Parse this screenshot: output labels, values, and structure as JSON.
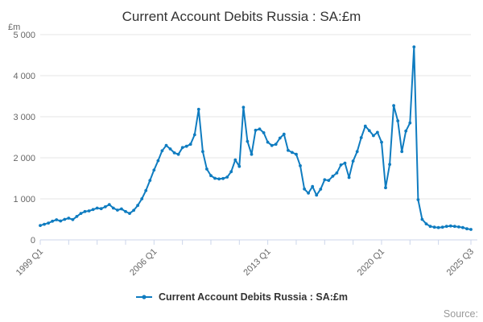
{
  "title": "Current Account Debits Russia : SA:£m",
  "y_axis": {
    "unit": "£m",
    "ticks": [
      {
        "value": 0,
        "label": "0"
      },
      {
        "value": 1000,
        "label": "1 000"
      },
      {
        "value": 2000,
        "label": "2 000"
      },
      {
        "value": 3000,
        "label": "3 000"
      },
      {
        "value": 4000,
        "label": "4 000"
      },
      {
        "value": 5000,
        "label": "5 000"
      }
    ]
  },
  "x_axis": {
    "tick_labels": [
      {
        "quarter_index": 0,
        "label": "1999 Q1"
      },
      {
        "quarter_index": 28,
        "label": "2006 Q1"
      },
      {
        "quarter_index": 56,
        "label": "2013 Q1"
      },
      {
        "quarter_index": 84,
        "label": "2020 Q1"
      },
      {
        "quarter_index": 106,
        "label": "2025 Q3"
      }
    ],
    "minor_tick_quarter_indices": [
      7,
      14,
      21,
      35,
      42,
      49,
      63,
      70,
      77,
      91,
      98
    ]
  },
  "legend": {
    "label": "Current Account Debits Russia : SA:£m"
  },
  "source_label": "Source:",
  "colors": {
    "line": "#0f7cc0",
    "grid": "#e6e6e6",
    "axis": "#ccd6eb",
    "tick_text": "#666666",
    "title_text": "#333333",
    "source_text": "#999999"
  },
  "chart_data": {
    "type": "line",
    "title": "Current Account Debits Russia : SA:£m",
    "series_name": "Current Account Debits Russia : SA:£m",
    "frequency": "quarterly",
    "x_start": "1999 Q1",
    "x_end": "2025 Q3",
    "ylabel": "£m",
    "ylim": [
      0,
      5000
    ],
    "grid": "horizontal-only",
    "legend_position": "bottom-center",
    "values": [
      350,
      380,
      410,
      455,
      490,
      460,
      500,
      530,
      495,
      570,
      645,
      690,
      705,
      740,
      775,
      760,
      805,
      860,
      775,
      725,
      755,
      690,
      645,
      720,
      840,
      1000,
      1200,
      1450,
      1700,
      1930,
      2170,
      2300,
      2215,
      2120,
      2085,
      2250,
      2280,
      2330,
      2560,
      3180,
      2150,
      1725,
      1565,
      1500,
      1485,
      1495,
      1530,
      1660,
      1950,
      1790,
      3230,
      2400,
      2085,
      2670,
      2700,
      2610,
      2380,
      2300,
      2330,
      2480,
      2575,
      2180,
      2130,
      2085,
      1805,
      1240,
      1140,
      1300,
      1090,
      1235,
      1465,
      1450,
      1550,
      1630,
      1825,
      1870,
      1520,
      1920,
      2150,
      2490,
      2770,
      2660,
      2540,
      2620,
      2380,
      1270,
      1840,
      3270,
      2900,
      2150,
      2650,
      2850,
      4700,
      980,
      500,
      390,
      330,
      310,
      300,
      310,
      330,
      340,
      330,
      315,
      300,
      270,
      255
    ]
  }
}
